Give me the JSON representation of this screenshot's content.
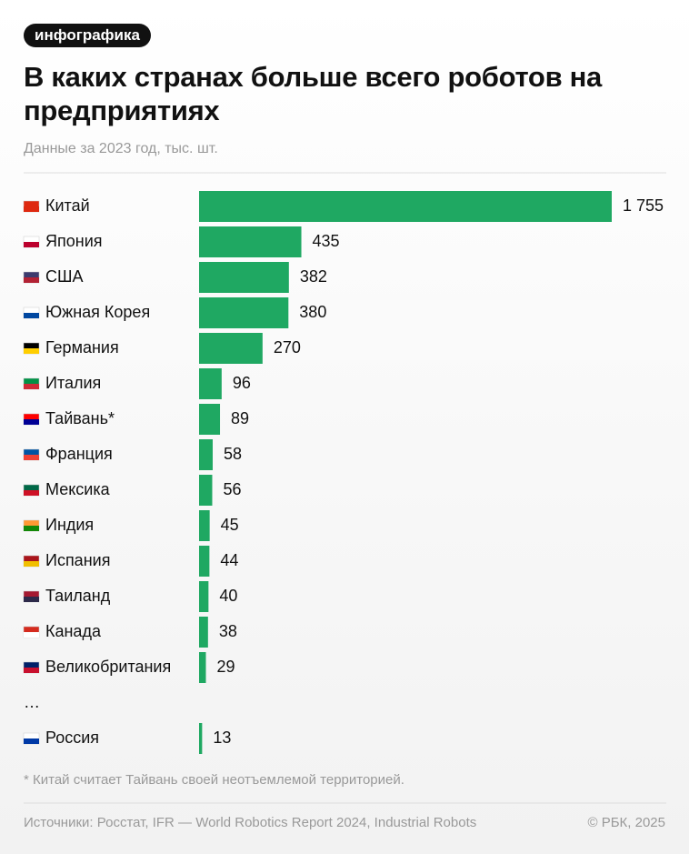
{
  "badge": "инфографика",
  "chart_data": {
    "type": "bar",
    "orientation": "horizontal",
    "title": "В каких странах больше всего роботов на предприятиях",
    "subtitle": "Данные за 2023 год, тыс. шт.",
    "categories": [
      "Китай",
      "Япония",
      "США",
      "Южная Корея",
      "Германия",
      "Италия",
      "Тайвань*",
      "Франция",
      "Мексика",
      "Индия",
      "Испания",
      "Таиланд",
      "Канада",
      "Великобритания",
      "…",
      "Россия"
    ],
    "values": [
      1755,
      435,
      382,
      380,
      270,
      96,
      89,
      58,
      56,
      45,
      44,
      40,
      38,
      29,
      null,
      13
    ],
    "value_labels": [
      "1 755",
      "435",
      "382",
      "380",
      "270",
      "96",
      "89",
      "58",
      "56",
      "45",
      "44",
      "40",
      "38",
      "29",
      null,
      "13"
    ],
    "color": "#1fa862",
    "footnote": "* Китай считает Тайвань своей неотъемлемой территорией.",
    "source": "Источники: Росстат, IFR — World Robotics Report 2024, Industrial Robots",
    "credit": "© РБК, 2025"
  }
}
